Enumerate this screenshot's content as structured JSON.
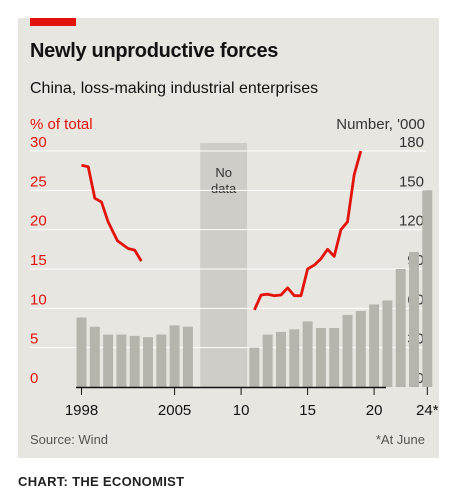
{
  "title": "Newly unproductive forces",
  "subtitle": "China, loss-making industrial enterprises",
  "left_axis_label": "% of total",
  "right_axis_label": "Number, '000",
  "source": "Source: Wind",
  "note": "*At June",
  "credit": "CHART: THE ECONOMIST",
  "no_data_lines": [
    "No",
    "data"
  ],
  "colors": {
    "line": "#e3120b",
    "bars": "#b5b4ad",
    "shade": "#cfcdc7",
    "panel": "#e8e6e1"
  },
  "chart_data": {
    "type": "bar+line",
    "x_tick_labels": [
      "1998",
      "2005",
      "10",
      "15",
      "20",
      "24*"
    ],
    "left_axis": {
      "label": "% of total",
      "range": [
        0,
        30
      ],
      "ticks": [
        0,
        5,
        10,
        15,
        20,
        25,
        30
      ]
    },
    "right_axis": {
      "label": "Number, '000",
      "range": [
        0,
        180
      ],
      "ticks": [
        0,
        30,
        60,
        90,
        120,
        150,
        180
      ]
    },
    "no_data_period": [
      2007,
      2010
    ],
    "bars": {
      "axis": "right",
      "points": [
        {
          "year": 1998,
          "value": 53
        },
        {
          "year": 1999,
          "value": 46
        },
        {
          "year": 2000,
          "value": 40
        },
        {
          "year": 2001,
          "value": 40
        },
        {
          "year": 2002,
          "value": 39
        },
        {
          "year": 2003,
          "value": 38
        },
        {
          "year": 2004,
          "value": 40
        },
        {
          "year": 2005,
          "value": 47
        },
        {
          "year": 2006,
          "value": 46
        },
        {
          "year": 2011,
          "value": 30
        },
        {
          "year": 2012,
          "value": 40
        },
        {
          "year": 2013,
          "value": 42
        },
        {
          "year": 2014,
          "value": 44
        },
        {
          "year": 2015,
          "value": 50
        },
        {
          "year": 2016,
          "value": 45
        },
        {
          "year": 2017,
          "value": 45
        },
        {
          "year": 2018,
          "value": 55
        },
        {
          "year": 2019,
          "value": 58
        },
        {
          "year": 2020,
          "value": 63
        },
        {
          "year": 2021,
          "value": 66
        },
        {
          "year": 2022,
          "value": 90
        },
        {
          "year": 2023,
          "value": 103
        },
        {
          "year": 2024,
          "value": 150
        }
      ]
    },
    "line_series": [
      {
        "axis": "left",
        "points": [
          [
            1998.0,
            28.2
          ],
          [
            1998.5,
            28.0
          ],
          [
            1999.0,
            24.0
          ],
          [
            1999.5,
            23.5
          ],
          [
            2000.0,
            21.0
          ],
          [
            2000.7,
            18.6
          ],
          [
            2001.5,
            17.6
          ],
          [
            2002.0,
            17.4
          ],
          [
            2002.5,
            16.0
          ]
        ]
      },
      {
        "axis": "left",
        "points": [
          [
            2011.0,
            9.8
          ],
          [
            2011.5,
            11.7
          ],
          [
            2012.0,
            11.8
          ],
          [
            2012.5,
            11.6
          ],
          [
            2013.0,
            11.7
          ],
          [
            2013.5,
            12.6
          ],
          [
            2014.0,
            11.6
          ],
          [
            2014.5,
            11.6
          ],
          [
            2015.0,
            15.0
          ],
          [
            2015.5,
            15.5
          ],
          [
            2016.0,
            16.3
          ],
          [
            2016.5,
            17.5
          ],
          [
            2017.0,
            16.6
          ],
          [
            2017.5,
            20.0
          ],
          [
            2018.0,
            21.0
          ],
          [
            2018.5,
            27.0
          ],
          [
            2019.0,
            30.0
          ]
        ]
      }
    ]
  }
}
